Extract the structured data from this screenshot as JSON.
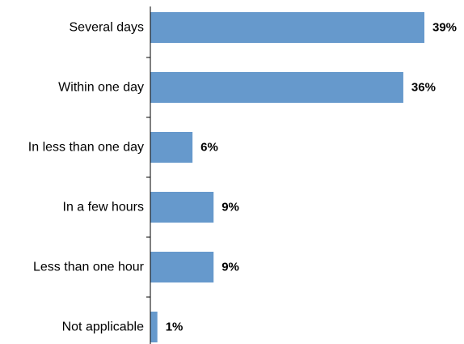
{
  "chart_data": {
    "type": "bar",
    "orientation": "horizontal",
    "title": "",
    "xlabel": "",
    "ylabel": "",
    "categories": [
      "Several days",
      "Within one day",
      "In less than one day",
      "In a few hours",
      "Less than one hour",
      "Not applicable"
    ],
    "values": [
      39,
      36,
      6,
      9,
      9,
      1
    ],
    "value_labels": [
      "39%",
      "36%",
      "6%",
      "9%",
      "9%",
      "1%"
    ],
    "xlim": [
      0,
      39
    ],
    "grid": false,
    "legend": "none",
    "bar_color": "#6699cc",
    "axis_color": "#000000"
  }
}
